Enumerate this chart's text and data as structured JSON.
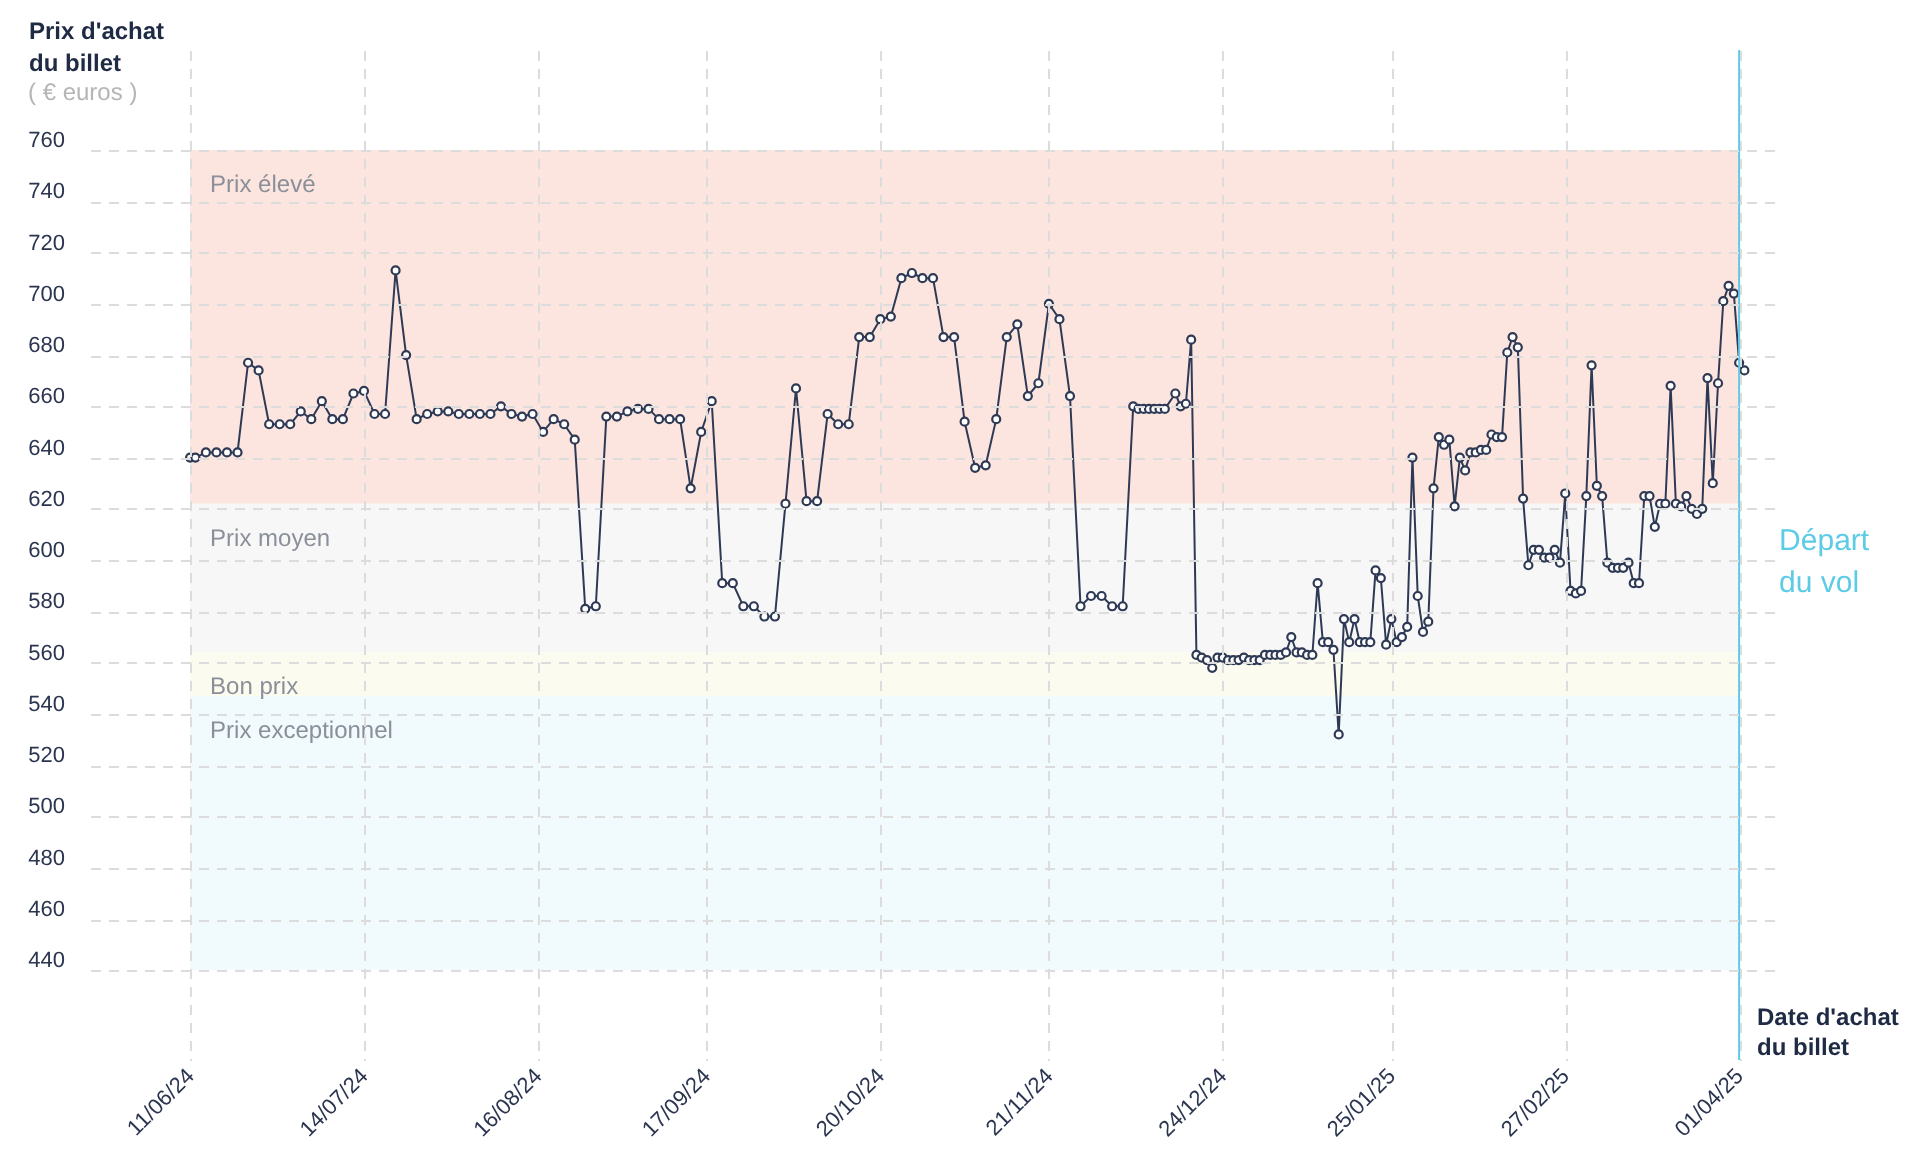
{
  "chart_data": {
    "type": "line",
    "xlabel": "Date d'achat du billet",
    "ylabel": "Prix d'achat du billet",
    "annotations": [
      "( € euros )"
    ],
    "x": [
      "2024-06-11",
      "2024-06-12",
      "2024-06-14",
      "2024-06-16",
      "2024-06-18",
      "2024-06-20",
      "2024-06-22",
      "2024-06-24",
      "2024-06-26",
      "2024-06-28",
      "2024-06-30",
      "2024-07-02",
      "2024-07-04",
      "2024-07-06",
      "2024-07-08",
      "2024-07-10",
      "2024-07-12",
      "2024-07-14",
      "2024-07-16",
      "2024-07-18",
      "2024-07-20",
      "2024-07-22",
      "2024-07-24",
      "2024-07-26",
      "2024-07-28",
      "2024-07-30",
      "2024-08-01",
      "2024-08-03",
      "2024-08-05",
      "2024-08-07",
      "2024-08-09",
      "2024-08-11",
      "2024-08-13",
      "2024-08-15",
      "2024-08-17",
      "2024-08-19",
      "2024-08-21",
      "2024-08-23",
      "2024-08-25",
      "2024-08-27",
      "2024-08-29",
      "2024-08-31",
      "2024-09-02",
      "2024-09-04",
      "2024-09-06",
      "2024-09-08",
      "2024-09-10",
      "2024-09-12",
      "2024-09-14",
      "2024-09-16",
      "2024-09-18",
      "2024-09-20",
      "2024-09-22",
      "2024-09-24",
      "2024-09-26",
      "2024-09-28",
      "2024-09-30",
      "2024-10-02",
      "2024-10-04",
      "2024-10-06",
      "2024-10-08",
      "2024-10-10",
      "2024-10-12",
      "2024-10-14",
      "2024-10-16",
      "2024-10-18",
      "2024-10-20",
      "2024-10-22",
      "2024-10-24",
      "2024-10-26",
      "2024-10-28",
      "2024-10-30",
      "2024-11-01",
      "2024-11-03",
      "2024-11-05",
      "2024-11-07",
      "2024-11-09",
      "2024-11-11",
      "2024-11-13",
      "2024-11-15",
      "2024-11-17",
      "2024-11-19",
      "2024-11-21",
      "2024-11-23",
      "2024-11-25",
      "2024-11-27",
      "2024-11-29",
      "2024-12-01",
      "2024-12-03",
      "2024-12-05",
      "2024-12-07",
      "2024-12-08",
      "2024-12-09",
      "2024-12-10",
      "2024-12-11",
      "2024-12-12",
      "2024-12-13",
      "2024-12-15",
      "2024-12-16",
      "2024-12-17",
      "2024-12-18",
      "2024-12-19",
      "2024-12-20",
      "2024-12-21",
      "2024-12-22",
      "2024-12-23",
      "2024-12-24",
      "2024-12-25",
      "2024-12-26",
      "2024-12-27",
      "2024-12-28",
      "2024-12-29",
      "2024-12-30",
      "2024-12-31",
      "2025-01-01",
      "2025-01-02",
      "2025-01-03",
      "2025-01-04",
      "2025-01-05",
      "2025-01-06",
      "2025-01-07",
      "2025-01-08",
      "2025-01-09",
      "2025-01-10",
      "2025-01-11",
      "2025-01-12",
      "2025-01-13",
      "2025-01-14",
      "2025-01-15",
      "2025-01-16",
      "2025-01-17",
      "2025-01-18",
      "2025-01-19",
      "2025-01-20",
      "2025-01-21",
      "2025-01-22",
      "2025-01-23",
      "2025-01-24",
      "2025-01-25",
      "2025-01-26",
      "2025-01-27",
      "2025-01-28",
      "2025-01-29",
      "2025-01-30",
      "2025-01-31",
      "2025-02-01",
      "2025-02-02",
      "2025-02-03",
      "2025-02-04",
      "2025-02-05",
      "2025-02-06",
      "2025-02-07",
      "2025-02-08",
      "2025-02-09",
      "2025-02-10",
      "2025-02-11",
      "2025-02-12",
      "2025-02-13",
      "2025-02-14",
      "2025-02-15",
      "2025-02-16",
      "2025-02-17",
      "2025-02-18",
      "2025-02-19",
      "2025-02-20",
      "2025-02-21",
      "2025-02-22",
      "2025-02-23",
      "2025-02-24",
      "2025-02-25",
      "2025-02-26",
      "2025-02-27",
      "2025-02-28",
      "2025-03-01",
      "2025-03-02",
      "2025-03-03",
      "2025-03-04",
      "2025-03-05",
      "2025-03-06",
      "2025-03-07",
      "2025-03-08",
      "2025-03-09",
      "2025-03-10",
      "2025-03-11",
      "2025-03-12",
      "2025-03-13",
      "2025-03-14",
      "2025-03-15",
      "2025-03-16",
      "2025-03-17",
      "2025-03-18",
      "2025-03-19",
      "2025-03-20",
      "2025-03-21",
      "2025-03-22",
      "2025-03-23",
      "2025-03-24",
      "2025-03-25",
      "2025-03-26",
      "2025-03-27",
      "2025-03-28",
      "2025-03-29",
      "2025-03-30",
      "2025-03-31",
      "2025-04-01",
      "2025-04-02"
    ],
    "series": [
      {
        "color": "#2e3a55",
        "values": [
          640,
          640,
          642,
          642,
          642,
          642,
          677,
          674,
          653,
          653,
          653,
          658,
          655,
          662,
          655,
          655,
          665,
          666,
          657,
          657,
          713,
          680,
          655,
          657,
          658,
          658,
          657,
          657,
          657,
          657,
          660,
          657,
          656,
          657,
          650,
          655,
          653,
          647,
          581,
          582,
          656,
          656,
          658,
          659,
          659,
          655,
          655,
          655,
          628,
          650,
          662,
          591,
          591,
          582,
          582,
          578,
          578,
          622,
          667,
          623,
          623,
          657,
          653,
          653,
          687,
          687,
          694,
          695,
          710,
          712,
          710,
          710,
          687,
          687,
          654,
          636,
          637,
          655,
          687,
          692,
          664,
          669,
          700,
          694,
          664,
          582,
          586,
          586,
          582,
          582,
          660,
          659,
          659,
          659,
          659,
          659,
          659,
          665,
          660,
          661,
          686,
          563,
          562,
          561,
          558,
          562,
          562,
          561,
          561,
          561,
          562,
          561,
          561,
          561,
          563,
          563,
          563,
          563,
          564,
          570,
          564,
          564,
          563,
          563,
          591,
          568,
          568,
          565,
          532,
          577,
          568,
          577,
          568,
          568,
          568,
          596,
          593,
          567,
          577,
          568,
          570,
          574,
          640,
          586,
          572,
          576,
          628,
          648,
          645,
          647,
          621,
          640,
          635,
          642,
          642,
          643,
          643,
          649,
          648,
          648,
          681,
          687,
          683,
          624,
          598,
          604,
          604,
          601,
          601,
          604,
          599,
          626,
          588,
          587,
          588,
          625,
          676,
          629,
          625,
          599,
          597,
          597,
          597,
          599,
          591,
          591,
          625,
          625,
          613,
          622,
          622,
          668,
          622,
          621,
          625,
          620,
          618,
          620,
          671,
          630,
          669,
          701,
          707,
          704,
          677,
          674
        ]
      }
    ],
    "xlim": [
      "2024-05-23",
      "2025-04-08"
    ],
    "ylim": [
      405,
      799
    ],
    "xticks": [
      {
        "value": "2024-06-11",
        "label": "11/06/24"
      },
      {
        "value": "2024-07-14",
        "label": "14/07/24"
      },
      {
        "value": "2024-08-16",
        "label": "16/08/24"
      },
      {
        "value": "2024-09-17",
        "label": "17/09/24"
      },
      {
        "value": "2024-10-20",
        "label": "20/10/24"
      },
      {
        "value": "2024-11-21",
        "label": "21/11/24"
      },
      {
        "value": "2024-12-24",
        "label": "24/12/24"
      },
      {
        "value": "2025-01-25",
        "label": "25/01/25"
      },
      {
        "value": "2025-02-27",
        "label": "27/02/25"
      },
      {
        "value": "2025-04-01",
        "label": "01/04/25"
      }
    ],
    "yticks": [
      440,
      460,
      480,
      500,
      520,
      540,
      560,
      580,
      600,
      620,
      640,
      660,
      680,
      700,
      720,
      740,
      760
    ],
    "bands": [
      {
        "axis": "y",
        "from": 622,
        "to": 760,
        "label": "Prix élevé",
        "color": "#fde5df"
      },
      {
        "axis": "y",
        "from": 564,
        "to": 622,
        "label": "Prix moyen",
        "color": "#f7f7f7"
      },
      {
        "axis": "y",
        "from": 547,
        "to": 564,
        "label": "Bon prix",
        "color": "#fbfbef"
      },
      {
        "axis": "y",
        "from": 440,
        "to": 547,
        "label": "Prix exceptionnel",
        "color": "#f1fafd"
      }
    ],
    "ref_lines": [
      {
        "axis": "x",
        "value": "2025-04-01",
        "label": "Départ du vol",
        "color": "#5ccbe6"
      }
    ],
    "grid": true,
    "marker": "circle",
    "line_style": "solid"
  }
}
